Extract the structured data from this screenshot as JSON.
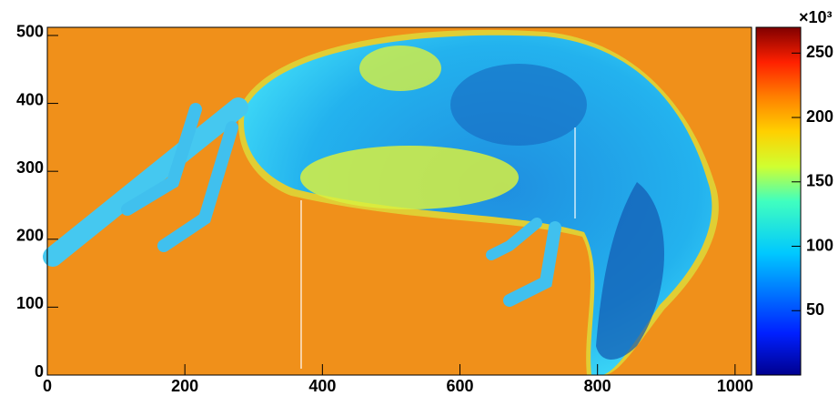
{
  "chart_data": {
    "type": "heatmap",
    "xlim": [
      0,
      1024
    ],
    "xticks": [
      0,
      200,
      400,
      600,
      800,
      1000
    ],
    "ylim": [
      0,
      512
    ],
    "yticks": [
      0,
      100,
      200,
      300,
      400,
      500
    ],
    "zlim": [
      0,
      270
    ],
    "zticks": [
      50,
      100,
      150,
      200,
      250
    ],
    "z_multiplier": "×10³",
    "colormap": "jet"
  }
}
